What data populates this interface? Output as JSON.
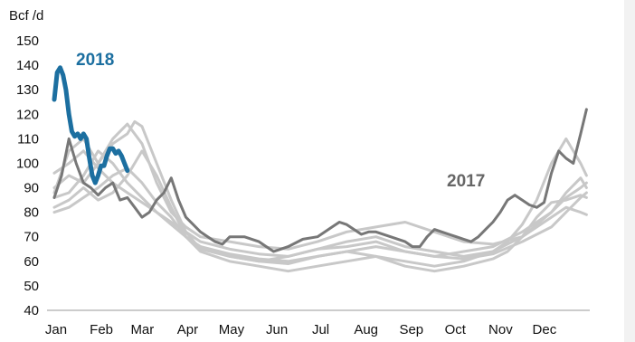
{
  "chart_data": {
    "type": "line",
    "unit_label": "Bcf /d",
    "ylim": [
      40,
      150
    ],
    "yticks": [
      40,
      50,
      60,
      70,
      80,
      90,
      100,
      110,
      120,
      130,
      140,
      150
    ],
    "xlim": [
      0,
      365
    ],
    "month_ticks": [
      {
        "label": "Jan",
        "x": 0
      },
      {
        "label": "Feb",
        "x": 31
      },
      {
        "label": "Mar",
        "x": 59
      },
      {
        "label": "Apr",
        "x": 90
      },
      {
        "label": "May",
        "x": 120
      },
      {
        "label": "Jun",
        "x": 151
      },
      {
        "label": "Jul",
        "x": 181
      },
      {
        "label": "Aug",
        "x": 212
      },
      {
        "label": "Sep",
        "x": 243
      },
      {
        "label": "Oct",
        "x": 273
      },
      {
        "label": "Nov",
        "x": 304
      },
      {
        "label": "Dec",
        "x": 334
      }
    ],
    "annotations": [
      {
        "text": "2018",
        "series": "2018"
      },
      {
        "text": "2017",
        "series": "2017"
      }
    ],
    "colors": {
      "2018": "#1c6fa0",
      "2017": "#777777",
      "others": "#c8c8c8"
    },
    "series": [
      {
        "name": "2018",
        "style": "highlight",
        "x": [
          0,
          2,
          4,
          6,
          8,
          10,
          12,
          14,
          16,
          18,
          20,
          22,
          24,
          26,
          28,
          30,
          32,
          34,
          36,
          38,
          40,
          42,
          44,
          46,
          48,
          50
        ],
        "y": [
          126,
          137,
          139,
          136,
          130,
          120,
          113,
          111,
          112,
          110,
          112,
          110,
          102,
          95,
          92,
          95,
          99,
          99,
          103,
          106,
          106,
          104,
          105,
          103,
          100,
          97
        ]
      },
      {
        "name": "2017",
        "style": "dark",
        "x": [
          0,
          5,
          10,
          15,
          20,
          25,
          30,
          35,
          40,
          45,
          50,
          55,
          60,
          65,
          70,
          75,
          80,
          85,
          90,
          95,
          100,
          105,
          110,
          115,
          120,
          130,
          140,
          145,
          150,
          155,
          160,
          170,
          180,
          190,
          195,
          200,
          205,
          210,
          215,
          220,
          230,
          240,
          245,
          250,
          255,
          260,
          265,
          270,
          275,
          280,
          285,
          290,
          295,
          300,
          305,
          310,
          315,
          320,
          325,
          330,
          335,
          340,
          345,
          350,
          355,
          360,
          364
        ],
        "y": [
          86,
          95,
          110,
          100,
          92,
          90,
          87,
          90,
          92,
          85,
          86,
          82,
          78,
          80,
          85,
          88,
          94,
          85,
          78,
          75,
          72,
          70,
          68,
          67,
          70,
          70,
          68,
          66,
          64,
          65,
          66,
          69,
          70,
          74,
          76,
          75,
          73,
          71,
          72,
          72,
          70,
          68,
          66,
          66,
          70,
          73,
          72,
          71,
          70,
          69,
          68,
          70,
          73,
          76,
          80,
          85,
          87,
          85,
          83,
          82,
          84,
          96,
          105,
          102,
          100,
          112,
          122
        ]
      },
      {
        "name": "",
        "style": "light",
        "x": [
          0,
          10,
          20,
          30,
          40,
          50,
          55,
          60,
          70,
          80,
          90,
          100,
          120,
          140,
          160,
          180,
          200,
          220,
          240,
          260,
          280,
          300,
          310,
          320,
          330,
          340,
          350,
          360,
          364
        ],
        "y": [
          88,
          105,
          110,
          100,
          108,
          112,
          117,
          115,
          100,
          85,
          72,
          65,
          62,
          60,
          59,
          62,
          64,
          62,
          60,
          58,
          60,
          64,
          68,
          75,
          85,
          100,
          110,
          100,
          95
        ]
      },
      {
        "name": "",
        "style": "light",
        "x": [
          0,
          10,
          20,
          30,
          40,
          50,
          60,
          70,
          80,
          90,
          100,
          120,
          140,
          160,
          180,
          200,
          220,
          240,
          260,
          280,
          300,
          310,
          320,
          330,
          340,
          350,
          360,
          364
        ],
        "y": [
          82,
          85,
          90,
          85,
          88,
          95,
          105,
          95,
          82,
          70,
          64,
          60,
          58,
          56,
          58,
          60,
          62,
          58,
          56,
          58,
          61,
          64,
          70,
          78,
          84,
          85,
          87,
          86
        ]
      },
      {
        "name": "",
        "style": "light",
        "x": [
          0,
          10,
          20,
          30,
          40,
          50,
          60,
          70,
          80,
          90,
          100,
          120,
          140,
          160,
          180,
          200,
          220,
          240,
          260,
          280,
          300,
          320,
          340,
          350,
          360,
          364
        ],
        "y": [
          80,
          82,
          86,
          90,
          95,
          98,
          92,
          84,
          78,
          70,
          66,
          62,
          60,
          62,
          65,
          68,
          70,
          66,
          64,
          62,
          64,
          70,
          78,
          82,
          80,
          79
        ]
      },
      {
        "name": "",
        "style": "light",
        "x": [
          0,
          10,
          20,
          30,
          40,
          50,
          60,
          70,
          80,
          90,
          100,
          120,
          140,
          160,
          180,
          200,
          220,
          240,
          260,
          280,
          300,
          320,
          340,
          350,
          360,
          364
        ],
        "y": [
          96,
          100,
          105,
          98,
          92,
          88,
          84,
          80,
          76,
          72,
          68,
          65,
          63,
          62,
          65,
          66,
          68,
          64,
          62,
          64,
          66,
          72,
          80,
          86,
          90,
          92
        ]
      },
      {
        "name": "",
        "style": "light",
        "x": [
          0,
          10,
          20,
          30,
          40,
          50,
          60,
          70,
          80,
          90,
          100,
          120,
          140,
          160,
          180,
          200,
          220,
          240,
          260,
          280,
          300,
          320,
          340,
          350,
          360,
          364
        ],
        "y": [
          90,
          95,
          92,
          100,
          110,
          116,
          108,
          92,
          80,
          74,
          70,
          68,
          66,
          65,
          68,
          72,
          74,
          76,
          72,
          68,
          67,
          70,
          80,
          88,
          94,
          90
        ]
      },
      {
        "name": "",
        "style": "light",
        "x": [
          0,
          10,
          20,
          30,
          40,
          50,
          60,
          70,
          80,
          90,
          100,
          120,
          140,
          160,
          180,
          200,
          220,
          240,
          260,
          280,
          300,
          320,
          340,
          350,
          360,
          364
        ],
        "y": [
          86,
          88,
          95,
          105,
          100,
          92,
          86,
          80,
          75,
          70,
          66,
          63,
          61,
          60,
          62,
          64,
          66,
          64,
          62,
          61,
          63,
          68,
          74,
          80,
          86,
          88
        ]
      }
    ]
  }
}
